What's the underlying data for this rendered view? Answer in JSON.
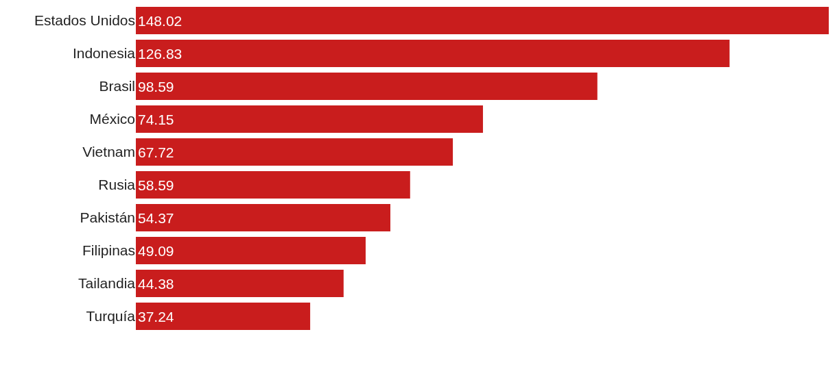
{
  "chart_data": {
    "type": "bar",
    "orientation": "horizontal",
    "categories": [
      "Estados Unidos",
      "Indonesia",
      "Brasil",
      "México",
      "Vietnam",
      "Rusia",
      "Pakistán",
      "Filipinas",
      "Tailandia",
      "Turquía"
    ],
    "values": [
      148.02,
      126.83,
      98.59,
      74.15,
      67.72,
      58.59,
      54.37,
      49.09,
      44.38,
      37.24
    ],
    "color": "#c91d1d",
    "data_labels": true,
    "tick_labels": "y"
  }
}
